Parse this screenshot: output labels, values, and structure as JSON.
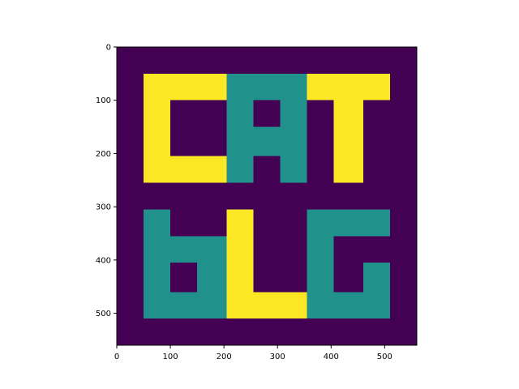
{
  "chart_data": {
    "type": "heatmap",
    "title": "",
    "xlabel": "",
    "ylabel": "",
    "grid": false,
    "legend": "none",
    "extent": {
      "x": [
        0,
        560
      ],
      "y": [
        0,
        560
      ]
    },
    "y_axis_inverted": true,
    "x_ticks": [
      0,
      100,
      200,
      300,
      400,
      500
    ],
    "y_ticks": [
      0,
      100,
      200,
      300,
      400,
      500
    ],
    "colormap": {
      "0": "#440154",
      "1": "#21918c",
      "2": "#fde725"
    },
    "cell_size": 50,
    "values": [
      [
        0,
        0,
        0,
        0,
        0,
        0,
        0,
        0,
        0,
        0,
        0,
        0
      ],
      [
        0,
        2,
        2,
        2,
        1,
        1,
        1,
        2,
        2,
        2,
        0,
        0
      ],
      [
        0,
        2,
        0,
        0,
        1,
        0,
        1,
        0,
        2,
        0,
        0,
        0
      ],
      [
        0,
        2,
        0,
        0,
        1,
        1,
        1,
        0,
        2,
        0,
        0,
        0
      ],
      [
        0,
        2,
        2,
        2,
        1,
        0,
        1,
        0,
        2,
        0,
        0,
        0
      ],
      [
        0,
        0,
        0,
        0,
        0,
        0,
        0,
        0,
        0,
        0,
        0,
        0
      ],
      [
        0,
        1,
        0,
        0,
        2,
        0,
        0,
        1,
        1,
        1,
        0,
        0
      ],
      [
        0,
        1,
        1,
        1,
        2,
        0,
        0,
        1,
        0,
        0,
        0,
        0
      ],
      [
        0,
        1,
        0,
        1,
        2,
        0,
        0,
        1,
        0,
        1,
        0,
        0
      ],
      [
        0,
        1,
        1,
        1,
        2,
        2,
        2,
        1,
        1,
        1,
        0,
        0
      ],
      [
        0,
        0,
        0,
        0,
        0,
        0,
        0,
        0,
        0,
        0,
        0,
        0
      ]
    ],
    "regions": [
      {
        "value": 2,
        "x": [
          50,
          205
        ],
        "y": [
          50,
          255
        ]
      },
      {
        "value": 0,
        "x": [
          100,
          205
        ],
        "y": [
          100,
          205
        ]
      },
      {
        "value": 1,
        "x": [
          205,
          355
        ],
        "y": [
          50,
          255
        ]
      },
      {
        "value": 0,
        "x": [
          255,
          305
        ],
        "y": [
          100,
          150
        ]
      },
      {
        "value": 0,
        "x": [
          255,
          305
        ],
        "y": [
          205,
          255
        ]
      },
      {
        "value": 2,
        "x": [
          355,
          510
        ],
        "y": [
          50,
          100
        ]
      },
      {
        "value": 2,
        "x": [
          405,
          460
        ],
        "y": [
          100,
          255
        ]
      },
      {
        "value": 1,
        "x": [
          50,
          100
        ],
        "y": [
          305,
          510
        ]
      },
      {
        "value": 1,
        "x": [
          100,
          205
        ],
        "y": [
          355,
          510
        ]
      },
      {
        "value": 0,
        "x": [
          100,
          150
        ],
        "y": [
          405,
          460
        ]
      },
      {
        "value": 2,
        "x": [
          205,
          255
        ],
        "y": [
          305,
          510
        ]
      },
      {
        "value": 2,
        "x": [
          255,
          355
        ],
        "y": [
          460,
          510
        ]
      },
      {
        "value": 1,
        "x": [
          355,
          405
        ],
        "y": [
          305,
          510
        ]
      },
      {
        "value": 1,
        "x": [
          405,
          510
        ],
        "y": [
          305,
          355
        ]
      },
      {
        "value": 1,
        "x": [
          405,
          510
        ],
        "y": [
          460,
          510
        ]
      },
      {
        "value": 1,
        "x": [
          460,
          510
        ],
        "y": [
          405,
          460
        ]
      }
    ]
  }
}
